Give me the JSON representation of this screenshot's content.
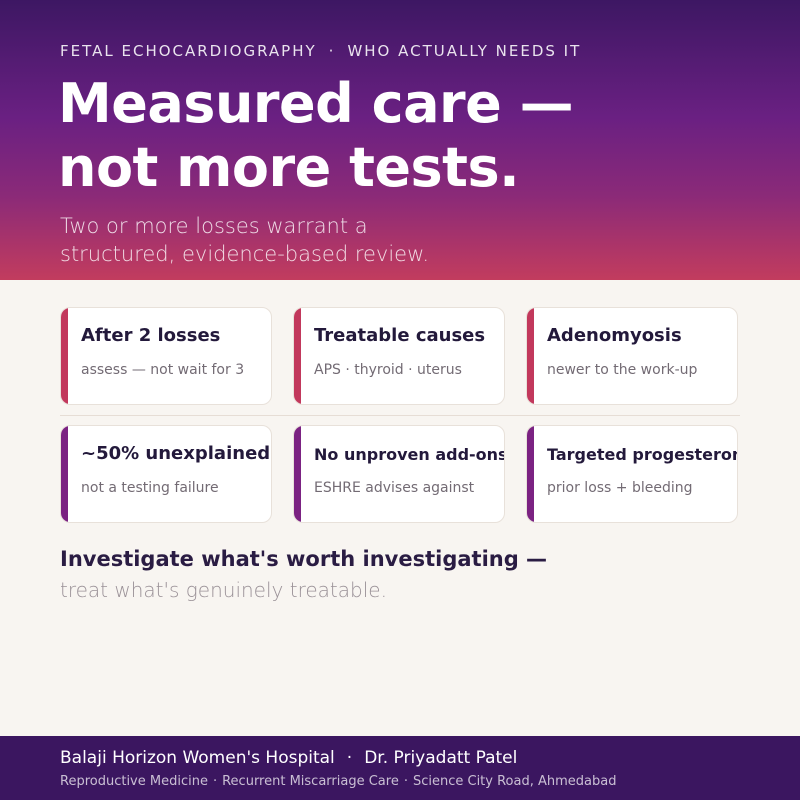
{
  "header": {
    "eyebrow_left": "FETAL ECHOCARDIOGRAPHY",
    "eyebrow_sep": "·",
    "eyebrow_right": "WHO ACTUALLY NEEDS IT",
    "headline_line1": "Measured care —",
    "headline_line2": "not more tests.",
    "subhead_line1": "Two or more losses warrant a",
    "subhead_line2": "structured, evidence-based review."
  },
  "cards": [
    {
      "title": "After 2 losses",
      "subtitle": "assess — not wait for 3"
    },
    {
      "title": "Treatable causes",
      "subtitle": "APS · thyroid · uterus"
    },
    {
      "title": "Adenomyosis",
      "subtitle": "newer to the work-up"
    },
    {
      "title": "~50% unexplained",
      "subtitle": "not a testing failure"
    },
    {
      "title": "No unproven add-ons",
      "subtitle": "ESHRE advises against"
    },
    {
      "title": "Targeted progesterone",
      "subtitle": "prior loss + bleeding"
    }
  ],
  "takeaway": {
    "lead": "Investigate what's worth investigating —",
    "follow": "treat what's genuinely treatable."
  },
  "footer": {
    "hospital": "Balaji Horizon Women's Hospital",
    "sep": "·",
    "doctor": "Dr. Priyadatt Patel",
    "specialty1": "Reproductive Medicine",
    "specialty2": "Recurrent Miscarriage Care",
    "location": "Science City Road, Ahmedabad"
  },
  "colors": {
    "accent_pink": "#c2385c",
    "accent_purple": "#7b2282",
    "footer_bg": "#3b1660"
  }
}
